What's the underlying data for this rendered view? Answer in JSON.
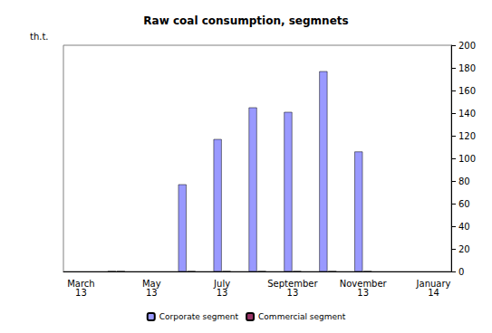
{
  "chart_data": {
    "type": "bar",
    "title": "Raw coal consumption, segmnets",
    "ylabel": "th.t.",
    "categories": [
      "March 13",
      null,
      "May 13",
      null,
      "July 13",
      null,
      "September 13",
      null,
      "November 13",
      null,
      "January 14"
    ],
    "series": [
      {
        "name": "Corporate segment",
        "color": "#9999ff",
        "values": [
          null,
          0,
          null,
          77,
          117,
          145,
          141,
          177,
          106,
          null,
          null
        ]
      },
      {
        "name": "Commercial segment",
        "color": "#993366",
        "values": [
          null,
          0,
          null,
          0,
          0,
          0,
          0,
          0,
          0,
          null,
          null
        ]
      }
    ],
    "ylim": [
      0,
      200
    ],
    "yticks": [
      0,
      20,
      40,
      60,
      80,
      100,
      120,
      140,
      160,
      180,
      200
    ],
    "grid": false,
    "legend": "bottom"
  }
}
